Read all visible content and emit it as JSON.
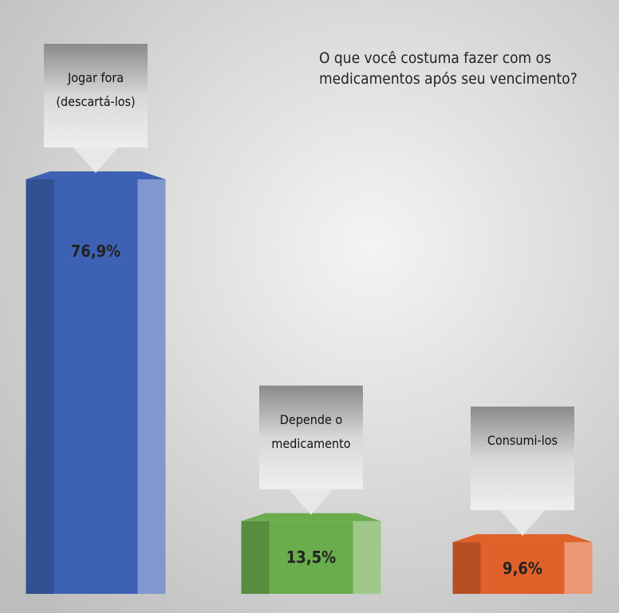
{
  "chart_data": {
    "type": "bar",
    "title": "O que você costuma fazer com os medicamentos após seu vencimento?",
    "categories": [
      "Jogar fora (descartá-los)",
      "Depende o medicamento",
      "Consumi-los"
    ],
    "values": [
      76.9,
      13.5,
      9.6
    ],
    "value_labels": [
      "76,9%",
      "13,5%",
      "9,6%"
    ],
    "colors": [
      "#3d62b3",
      "#6aad4c",
      "#e1612a"
    ]
  }
}
